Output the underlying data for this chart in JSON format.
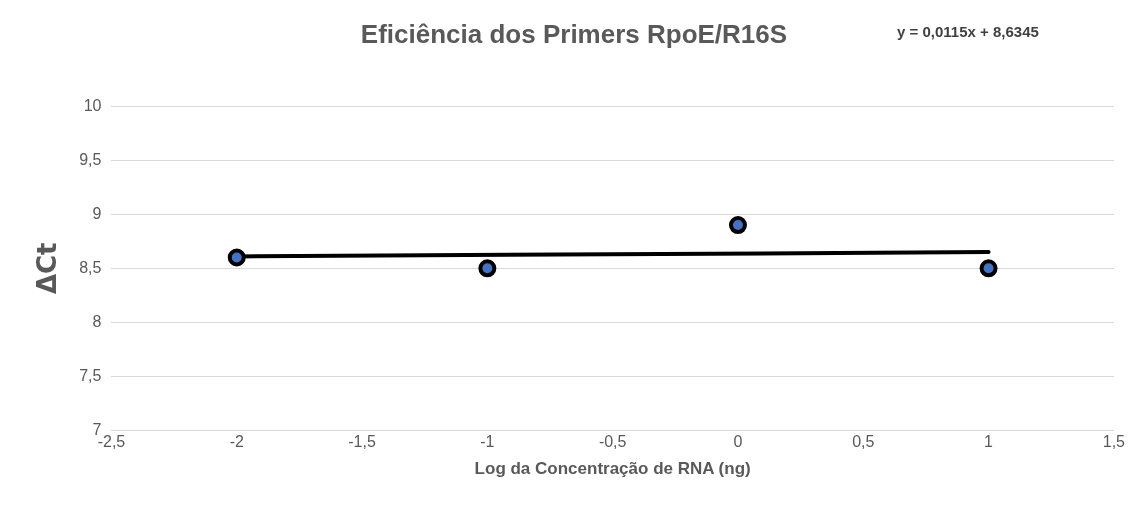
{
  "chart_data": {
    "type": "scatter",
    "title": "Eficiência dos Primers RpoE/R16S",
    "xlabel": "Log da Concentração de RNA (ng)",
    "ylabel": "ΔCt",
    "annotations": [
      "y = 0,0115x + 8,6345"
    ],
    "series": [
      {
        "color": "#4472c4",
        "x": [
          -2,
          -1,
          0,
          1
        ],
        "values": [
          8.6,
          8.5,
          8.9,
          8.5
        ],
        "marker": "circle"
      },
      {
        "type": "line",
        "color": "#000000",
        "x": [
          -2,
          1
        ],
        "values": [
          8.61,
          8.65
        ],
        "marker": "none"
      }
    ],
    "xlim": [
      -2.5,
      1.5
    ],
    "xticks": [
      {
        "value": -2.5,
        "label": "-2,5"
      },
      -2,
      {
        "value": -1.5,
        "label": "-1,5"
      },
      -1,
      {
        "value": -0.5,
        "label": "-0,5"
      },
      0,
      {
        "value": 0.5,
        "label": "0,5"
      },
      1,
      {
        "value": 1.5,
        "label": "1,5"
      }
    ],
    "ylim": [
      7,
      10
    ],
    "yticks": [
      7,
      {
        "value": 7.5,
        "label": "7,5"
      },
      8,
      {
        "value": 8.5,
        "label": "8,5"
      },
      9,
      {
        "value": 9.5,
        "label": "9,5"
      },
      10
    ],
    "grid": "y"
  }
}
